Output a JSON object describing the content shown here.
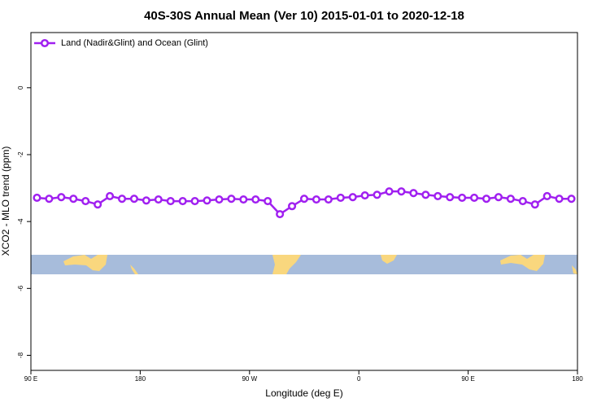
{
  "chart_data": {
    "type": "line",
    "title": "40S-30S Annual Mean (Ver 10)   2015-01-01 to 2020-12-18",
    "x_label": "Longitude (deg E)",
    "y_label": "XCO2 - MLO trend (ppm)",
    "x": [
      95,
      105,
      115,
      125,
      135,
      145,
      155,
      165,
      175,
      185,
      195,
      205,
      215,
      225,
      235,
      245,
      255,
      265,
      275,
      285,
      295,
      305,
      315,
      325,
      335,
      345,
      355,
      365,
      375,
      385,
      395,
      405,
      415,
      425,
      435,
      445,
      455,
      465,
      475,
      485,
      495,
      505,
      515,
      525,
      535
    ],
    "series": [
      {
        "name": "Land (Nadir&Glint) and Ocean (Glint)",
        "color": "#a020f0",
        "values": [
          -3.29,
          -3.32,
          -3.27,
          -3.32,
          -3.39,
          -3.49,
          -3.24,
          -3.32,
          -3.32,
          -3.37,
          -3.34,
          -3.39,
          -3.39,
          -3.39,
          -3.37,
          -3.34,
          -3.32,
          -3.34,
          -3.34,
          -3.39,
          -3.78,
          -3.54,
          -3.32,
          -3.34,
          -3.34,
          -3.29,
          -3.27,
          -3.22,
          -3.2,
          -3.1,
          -3.1,
          -3.15,
          -3.2,
          -3.24,
          -3.27,
          -3.29,
          -3.29,
          -3.32,
          -3.27,
          -3.32,
          -3.39,
          -3.49,
          -3.24,
          -3.32,
          -3.32
        ]
      }
    ],
    "xlim": [
      90,
      540
    ],
    "xticks": [
      {
        "value": 90,
        "label": "90 E"
      },
      180,
      {
        "value": 270,
        "label": "90 W"
      },
      {
        "value": 360,
        "label": "0"
      },
      {
        "value": 450,
        "label": "90 E"
      },
      {
        "value": 540,
        "label": "180"
      }
    ],
    "ylim": [
      -8.45,
      1.65
    ],
    "yticks": [
      0,
      -2,
      -4,
      -6,
      -8
    ],
    "legend": "top-left"
  }
}
